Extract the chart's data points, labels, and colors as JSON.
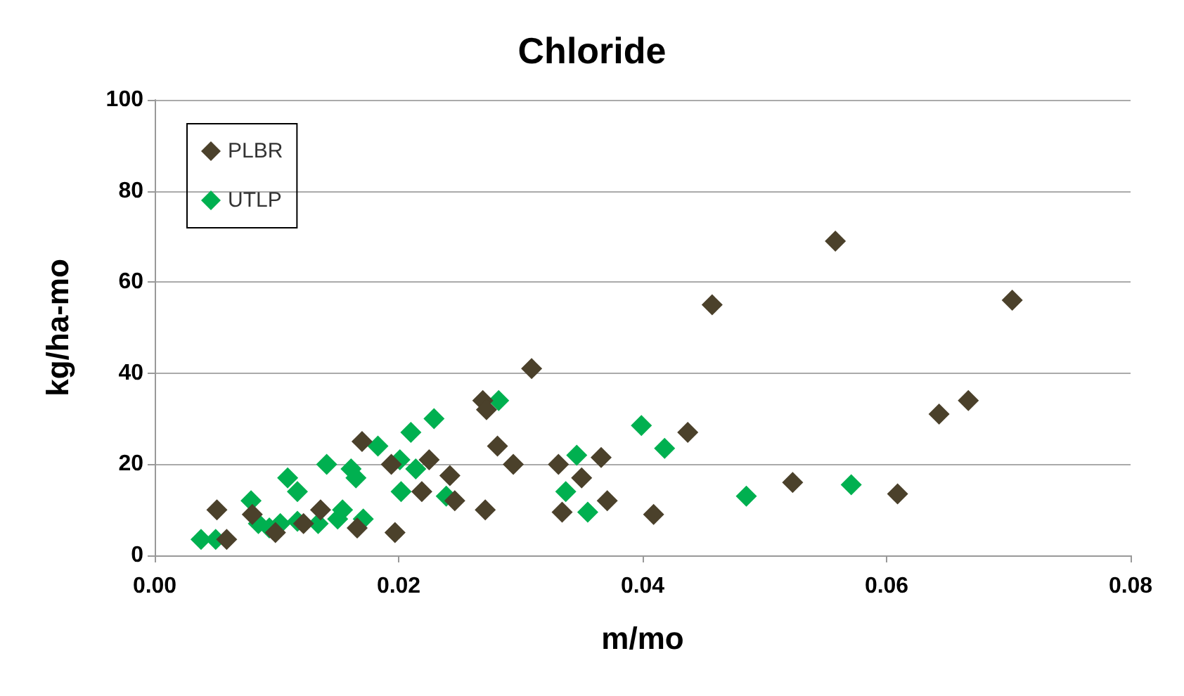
{
  "chart_data": {
    "type": "scatter",
    "title": "Chloride",
    "xlabel": "m/mo",
    "ylabel": "kg/ha-mo",
    "xlim": [
      0,
      0.08
    ],
    "xticks": [
      {
        "value": 0,
        "label": "0.00"
      },
      {
        "value": 0.02,
        "label": "0.02"
      },
      {
        "value": 0.04,
        "label": "0.04"
      },
      {
        "value": 0.06,
        "label": "0.06"
      },
      {
        "value": 0.08,
        "label": "0.08"
      }
    ],
    "ylim": [
      0,
      100
    ],
    "yticks": [
      0,
      20,
      40,
      60,
      80,
      100
    ],
    "grid": "y",
    "legend": "top left",
    "marker": "diamond",
    "series": [
      {
        "name": "PLBR",
        "color": "#4b412b",
        "x": [
          0.0558,
          0.0703,
          0.0457,
          0.0309,
          0.0643,
          0.0667,
          0.0437,
          0.0269,
          0.0272,
          0.0281,
          0.0294,
          0.0331,
          0.035,
          0.0366,
          0.0371,
          0.0334,
          0.0409,
          0.0523,
          0.0609,
          0.0271,
          0.0242,
          0.0246,
          0.0225,
          0.0219,
          0.0197,
          0.0194,
          0.017,
          0.0166,
          0.0136,
          0.0122,
          0.0099,
          0.0051,
          0.0059,
          0.008
        ],
        "values": [
          69,
          56,
          55,
          41,
          31,
          34,
          27,
          34,
          32,
          24,
          20,
          20,
          17,
          21.5,
          12,
          9.5,
          9,
          16,
          13.5,
          10,
          17.5,
          12,
          21,
          14,
          5,
          20,
          25,
          6,
          10,
          7,
          5,
          10,
          3.5,
          9
        ]
      },
      {
        "name": "UTLP",
        "color": "#00b050",
        "x": [
          0.0282,
          0.0399,
          0.0418,
          0.0229,
          0.021,
          0.0346,
          0.0337,
          0.0355,
          0.0485,
          0.0571,
          0.0239,
          0.0214,
          0.0201,
          0.0202,
          0.0183,
          0.0171,
          0.0161,
          0.0165,
          0.0154,
          0.0141,
          0.015,
          0.0117,
          0.0109,
          0.0117,
          0.0134,
          0.0079,
          0.0085,
          0.0094,
          0.0103,
          0.0038,
          0.005
        ],
        "values": [
          34,
          28.5,
          23.5,
          30,
          27,
          22,
          14,
          9.5,
          13,
          15.5,
          13,
          19,
          21,
          14,
          24,
          8,
          19,
          17,
          10,
          20,
          8,
          14,
          17,
          7.5,
          7,
          12,
          7,
          6,
          7,
          3.5,
          3.5
        ]
      }
    ]
  }
}
